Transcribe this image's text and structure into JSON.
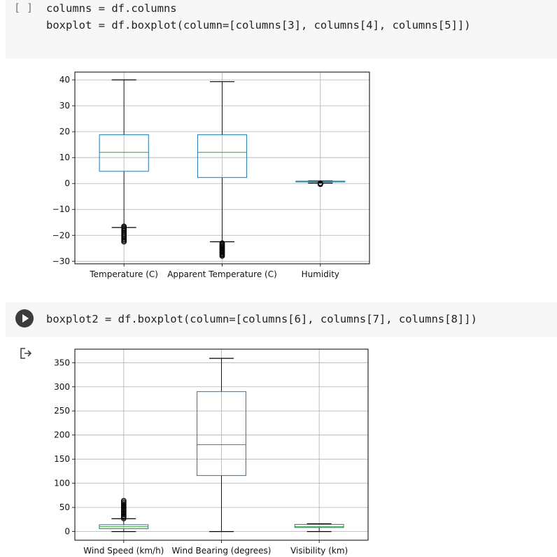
{
  "cells": [
    {
      "prompt": "[ ]",
      "lines": [
        "columns = df.columns",
        "boxplot = df.boxplot(column=[columns[3], columns[4], columns[5]])"
      ]
    },
    {
      "lines": [
        "boxplot2 = df.boxplot(column=[columns[6], columns[7], columns[8]])"
      ]
    }
  ],
  "icons": {
    "run": "play-circle-icon",
    "output": "output-arrow-icon"
  },
  "colors": {
    "box": "#1f77b4",
    "median": "#2ca02c",
    "grid": "#b0b0b0"
  },
  "chart_data": [
    {
      "type": "box",
      "categories": [
        "Temperature (C)",
        "Apparent Temperature (C)",
        "Humidity"
      ],
      "boxes": [
        {
          "whislo": -17,
          "q1": 4.7,
          "med": 12,
          "q3": 18.8,
          "whishi": 40,
          "fliers_lo": -22.5,
          "fliers_hi": -16.5
        },
        {
          "whislo": -22.5,
          "q1": 2.3,
          "med": 12,
          "q3": 18.8,
          "whishi": 39.3,
          "fliers_lo": -28,
          "fliers_hi": -23
        },
        {
          "whislo": 0.15,
          "q1": 0.6,
          "med": 0.78,
          "q3": 0.9,
          "whishi": 1.0,
          "fliers_lo": -0.3,
          "fliers_hi": 0.1
        }
      ],
      "yticks": [
        40,
        30,
        20,
        10,
        0,
        -10,
        -20,
        -30
      ],
      "ytick_labels": [
        "40",
        "30",
        "20",
        "10",
        "0",
        "−10",
        "−20",
        "−30"
      ],
      "ylim": [
        -31,
        43
      ],
      "grid": true
    },
    {
      "type": "box",
      "categories": [
        "Wind Speed (km/h)",
        "Wind Bearing (degrees)",
        "Visibility (km)"
      ],
      "boxes": [
        {
          "whislo": 0,
          "q1": 5.8,
          "med": 10,
          "q3": 14.1,
          "whishi": 26.6,
          "fliers_lo": 27,
          "fliers_hi": 64
        },
        {
          "whislo": 0,
          "q1": 116,
          "med": 180,
          "q3": 290,
          "whishi": 359,
          "fliers_lo": null,
          "fliers_hi": null
        },
        {
          "whislo": 0,
          "q1": 8.3,
          "med": 10,
          "q3": 14.8,
          "whishi": 16.1,
          "fliers_lo": null,
          "fliers_hi": null
        }
      ],
      "yticks": [
        350,
        300,
        250,
        200,
        150,
        100,
        50,
        0
      ],
      "ytick_labels": [
        "350",
        "300",
        "250",
        "200",
        "150",
        "100",
        "50",
        "0"
      ],
      "ylim": [
        -18,
        378
      ],
      "grid": true
    }
  ]
}
